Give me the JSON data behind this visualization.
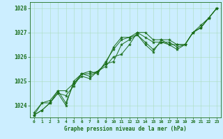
{
  "title": "Graphe pression niveau de la mer (hPa)",
  "xlabel_hours": [
    0,
    1,
    2,
    3,
    4,
    5,
    6,
    7,
    8,
    9,
    10,
    11,
    12,
    13,
    14,
    15,
    16,
    17,
    18,
    19,
    20,
    21,
    22,
    23
  ],
  "series": [
    [
      1023.6,
      1023.8,
      1024.1,
      1024.5,
      1024.4,
      1024.8,
      1025.3,
      1025.3,
      1025.4,
      1025.6,
      1026.0,
      1026.1,
      1026.5,
      1027.0,
      1026.8,
      1026.6,
      1026.6,
      1026.6,
      1026.4,
      1026.5,
      1027.0,
      1027.2,
      1027.6,
      1028.0
    ],
    [
      1023.6,
      1023.8,
      1024.1,
      1024.5,
      1024.0,
      1025.0,
      1025.3,
      1025.4,
      1025.3,
      1025.8,
      1026.3,
      1026.7,
      1026.8,
      1027.0,
      1027.0,
      1026.7,
      1026.7,
      1026.5,
      1026.3,
      1026.5,
      1027.0,
      1027.2,
      1027.6,
      1028.0
    ],
    [
      1023.6,
      1024.1,
      1024.1,
      1024.6,
      1024.6,
      1024.9,
      1025.2,
      1025.1,
      1025.4,
      1025.7,
      1025.8,
      1026.5,
      1026.7,
      1026.9,
      1026.6,
      1026.3,
      1026.6,
      1026.5,
      1026.5,
      1026.5,
      1027.0,
      1027.2,
      1027.6,
      1028.0
    ],
    [
      1023.7,
      1024.1,
      1024.2,
      1024.6,
      1024.1,
      1024.9,
      1025.3,
      1025.2,
      1025.4,
      1025.7,
      1026.4,
      1026.8,
      1026.8,
      1026.9,
      1026.5,
      1026.2,
      1026.7,
      1026.7,
      1026.5,
      1026.5,
      1027.0,
      1027.3,
      1027.6,
      1028.0
    ]
  ],
  "line_color": "#1a6e1a",
  "marker_color": "#1a6e1a",
  "bg_color": "#cceeff",
  "grid_color": "#aaddbb",
  "axis_color": "#1a6e1a",
  "ylim": [
    1023.5,
    1028.25
  ],
  "yticks": [
    1024,
    1025,
    1026,
    1027,
    1028
  ],
  "title_color": "#1a6e1a",
  "label_fontsize": 4.5,
  "ylabel_fontsize": 5.5,
  "title_fontsize": 5.5
}
